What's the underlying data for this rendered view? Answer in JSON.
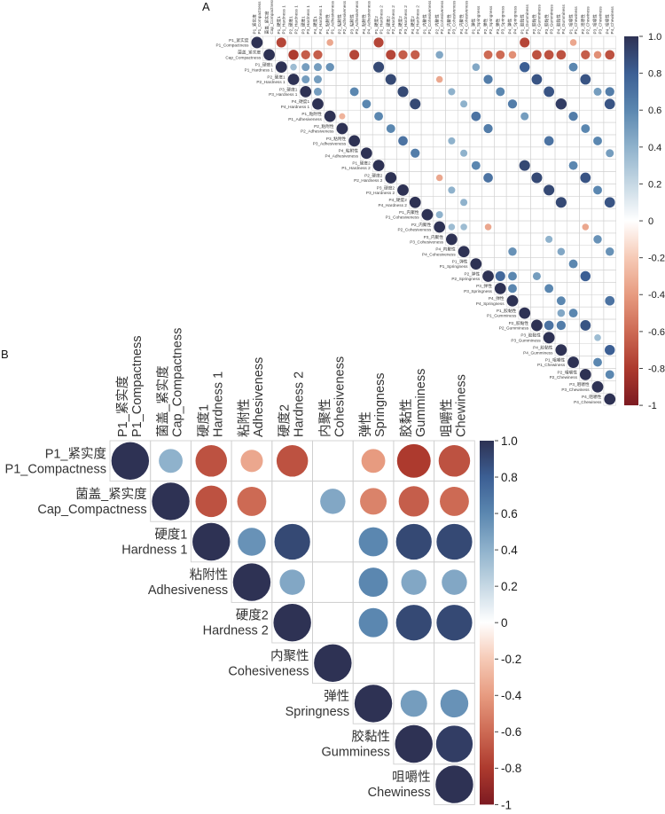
{
  "figure": {
    "background": "#ffffff"
  },
  "palette": {
    "stops": [
      {
        "v": -1,
        "color": "#7c1a21"
      },
      {
        "v": -0.8,
        "color": "#ad3a2e"
      },
      {
        "v": -0.6,
        "color": "#cd6a54"
      },
      {
        "v": -0.4,
        "color": "#e79b80"
      },
      {
        "v": -0.2,
        "color": "#f6cab6"
      },
      {
        "v": 0,
        "color": "#ffffff"
      },
      {
        "v": 0.2,
        "color": "#c6d8e4"
      },
      {
        "v": 0.4,
        "color": "#8fb2cc"
      },
      {
        "v": 0.6,
        "color": "#5b87b0"
      },
      {
        "v": 0.8,
        "color": "#3c5f94"
      },
      {
        "v": 1,
        "color": "#2e3254"
      }
    ],
    "grid_color": "#d0d0d0"
  },
  "chart_data": {
    "type": "heatmap",
    "subtype": "correlation-matrix-upper-circles",
    "domain": [
      -1,
      1
    ],
    "legend_position": "right",
    "panels": [
      {
        "id": "A",
        "panel_label": "A",
        "variables": [
          {
            "zh": "P1_紧实度",
            "en": "P1_Compactness"
          },
          {
            "zh": "菌盖_紧实度",
            "en": "Cap_Compactness"
          },
          {
            "zh": "P1_硬度1",
            "en": "P1_Hardness 1"
          },
          {
            "zh": "P2_硬度1",
            "en": "P2_Hardness 1"
          },
          {
            "zh": "P3_硬度1",
            "en": "P3_Hardness 1"
          },
          {
            "zh": "P4_硬度1",
            "en": "P4_Hardness 1"
          },
          {
            "zh": "P1_粘附性",
            "en": "P1_Adhesiveness"
          },
          {
            "zh": "P2_粘附性",
            "en": "P2_Adhesiveness"
          },
          {
            "zh": "P3_粘附性",
            "en": "P3_Adhesiveness"
          },
          {
            "zh": "P4_粘附性",
            "en": "P4_Adhesiveness"
          },
          {
            "zh": "P1_硬度2",
            "en": "P1_Hardness 2"
          },
          {
            "zh": "P2_硬度2",
            "en": "P2_Hardness 2"
          },
          {
            "zh": "P3_硬度2",
            "en": "P3_Hardness 2"
          },
          {
            "zh": "P4_硬度2",
            "en": "P4_Hardness 2"
          },
          {
            "zh": "P1_内聚性",
            "en": "P1_Cohesiveness"
          },
          {
            "zh": "P2_内聚性",
            "en": "P2_Cohesiveness"
          },
          {
            "zh": "P3_内聚性",
            "en": "P3_Cohesiveness"
          },
          {
            "zh": "P4_内聚性",
            "en": "P4_Cohesiveness"
          },
          {
            "zh": "P1_弹性",
            "en": "P1_Springness"
          },
          {
            "zh": "P2_弹性",
            "en": "P2_Springness"
          },
          {
            "zh": "P3_弹性",
            "en": "P3_Springness"
          },
          {
            "zh": "P4_弹性",
            "en": "P4_Springness"
          },
          {
            "zh": "P1_胶黏性",
            "en": "P1_Gumminess"
          },
          {
            "zh": "P2_胶黏性",
            "en": "P2_Gumminess"
          },
          {
            "zh": "P3_胶黏性",
            "en": "P3_Gumminess"
          },
          {
            "zh": "P4_胶黏性",
            "en": "P4_Gumminess"
          },
          {
            "zh": "P1_咀嚼性",
            "en": "P1_Chewiness"
          },
          {
            "zh": "P2_咀嚼性",
            "en": "P2_Chewiness"
          },
          {
            "zh": "P3_咀嚼性",
            "en": "P3_Chewiness"
          },
          {
            "zh": "P4_咀嚼性",
            "en": "P4_Chewiness"
          }
        ],
        "cells": [
          [
            1,
            1,
            1
          ],
          [
            1,
            3,
            -0.75
          ],
          [
            1,
            7,
            -0.35
          ],
          [
            1,
            11,
            -0.75
          ],
          [
            1,
            23,
            -0.75
          ],
          [
            1,
            27,
            -0.35
          ],
          [
            2,
            2,
            1
          ],
          [
            2,
            4,
            -0.8
          ],
          [
            2,
            5,
            -0.65
          ],
          [
            2,
            6,
            -0.65
          ],
          [
            2,
            9,
            -0.75
          ],
          [
            2,
            12,
            -0.75
          ],
          [
            2,
            13,
            -0.65
          ],
          [
            2,
            14,
            -0.65
          ],
          [
            2,
            16,
            0.45
          ],
          [
            2,
            20,
            -0.6
          ],
          [
            2,
            21,
            -0.6
          ],
          [
            2,
            22,
            -0.45
          ],
          [
            2,
            24,
            -0.7
          ],
          [
            2,
            25,
            -0.7
          ],
          [
            2,
            26,
            -0.7
          ],
          [
            2,
            28,
            -0.65
          ],
          [
            2,
            29,
            -0.45
          ],
          [
            2,
            30,
            -0.7
          ],
          [
            3,
            3,
            1
          ],
          [
            3,
            4,
            0.35
          ],
          [
            3,
            5,
            0.5
          ],
          [
            3,
            6,
            0.5
          ],
          [
            3,
            7,
            0.55
          ],
          [
            3,
            11,
            0.9
          ],
          [
            3,
            19,
            0.45
          ],
          [
            3,
            23,
            0.8
          ],
          [
            3,
            27,
            0.6
          ],
          [
            4,
            4,
            1
          ],
          [
            4,
            5,
            0.5
          ],
          [
            4,
            6,
            0.5
          ],
          [
            4,
            12,
            0.9
          ],
          [
            4,
            16,
            -0.35
          ],
          [
            4,
            20,
            0.65
          ],
          [
            4,
            24,
            0.85
          ],
          [
            4,
            28,
            0.85
          ],
          [
            5,
            5,
            1
          ],
          [
            5,
            6,
            0.5
          ],
          [
            5,
            9,
            0.6
          ],
          [
            5,
            13,
            0.9
          ],
          [
            5,
            17,
            0.4
          ],
          [
            5,
            21,
            0.6
          ],
          [
            5,
            25,
            0.85
          ],
          [
            5,
            29,
            0.5
          ],
          [
            5,
            30,
            0.65
          ],
          [
            6,
            6,
            1
          ],
          [
            6,
            10,
            0.6
          ],
          [
            6,
            14,
            0.9
          ],
          [
            6,
            18,
            0.4
          ],
          [
            6,
            22,
            0.65
          ],
          [
            6,
            26,
            0.95
          ],
          [
            6,
            30,
            0.85
          ],
          [
            7,
            7,
            1
          ],
          [
            7,
            8,
            -0.3
          ],
          [
            7,
            11,
            0.6
          ],
          [
            7,
            19,
            0.7
          ],
          [
            7,
            23,
            0.5
          ],
          [
            7,
            27,
            0.65
          ],
          [
            8,
            8,
            1
          ],
          [
            8,
            12,
            0.6
          ],
          [
            8,
            20,
            0.65
          ],
          [
            8,
            28,
            0.6
          ],
          [
            9,
            9,
            1
          ],
          [
            9,
            13,
            0.7
          ],
          [
            9,
            17,
            0.4
          ],
          [
            9,
            25,
            0.7
          ],
          [
            9,
            29,
            0.6
          ],
          [
            10,
            10,
            1
          ],
          [
            10,
            14,
            0.65
          ],
          [
            10,
            18,
            0.4
          ],
          [
            10,
            30,
            0.5
          ],
          [
            11,
            11,
            1
          ],
          [
            11,
            19,
            0.6
          ],
          [
            11,
            23,
            0.9
          ],
          [
            11,
            27,
            0.6
          ],
          [
            12,
            12,
            1
          ],
          [
            12,
            16,
            -0.35
          ],
          [
            12,
            20,
            0.7
          ],
          [
            12,
            24,
            0.9
          ],
          [
            12,
            28,
            0.85
          ],
          [
            13,
            13,
            1
          ],
          [
            13,
            17,
            0.4
          ],
          [
            13,
            25,
            0.9
          ],
          [
            13,
            29,
            0.6
          ],
          [
            14,
            14,
            1
          ],
          [
            14,
            18,
            0.4
          ],
          [
            14,
            26,
            0.9
          ],
          [
            14,
            30,
            0.85
          ],
          [
            15,
            15,
            1
          ],
          [
            15,
            16,
            0.4
          ],
          [
            16,
            16,
            1
          ],
          [
            16,
            17,
            0.35
          ],
          [
            16,
            18,
            0.35
          ],
          [
            16,
            20,
            -0.35
          ],
          [
            16,
            28,
            -0.35
          ],
          [
            17,
            17,
            1
          ],
          [
            17,
            25,
            0.4
          ],
          [
            17,
            29,
            0.55
          ],
          [
            18,
            18,
            1
          ],
          [
            18,
            22,
            0.55
          ],
          [
            18,
            26,
            0.45
          ],
          [
            18,
            30,
            0.55
          ],
          [
            19,
            19,
            1
          ],
          [
            19,
            27,
            0.6
          ],
          [
            20,
            20,
            1
          ],
          [
            20,
            21,
            0.75
          ],
          [
            20,
            22,
            0.6
          ],
          [
            20,
            24,
            0.5
          ],
          [
            20,
            28,
            0.8
          ],
          [
            21,
            21,
            1
          ],
          [
            21,
            22,
            0.6
          ],
          [
            21,
            25,
            0.6
          ],
          [
            22,
            22,
            1
          ],
          [
            22,
            26,
            0.6
          ],
          [
            22,
            30,
            0.7
          ],
          [
            23,
            23,
            1
          ],
          [
            23,
            26,
            0.45
          ],
          [
            23,
            27,
            0.6
          ],
          [
            24,
            24,
            1
          ],
          [
            24,
            25,
            0.7
          ],
          [
            24,
            26,
            0.65
          ],
          [
            24,
            28,
            0.85
          ],
          [
            25,
            25,
            1
          ],
          [
            25,
            29,
            0.35
          ],
          [
            26,
            26,
            1
          ],
          [
            26,
            30,
            0.8
          ],
          [
            27,
            27,
            1
          ],
          [
            27,
            29,
            0.6
          ],
          [
            28,
            28,
            1
          ],
          [
            28,
            30,
            0.6
          ],
          [
            29,
            29,
            1
          ],
          [
            30,
            30,
            1
          ]
        ],
        "colorbar": {
          "tick_labels": [
            "1.0",
            "0.8",
            "0.6",
            "0.4",
            "0.2",
            "0",
            "-0.2",
            "-0.4",
            "-0.6",
            "-0.8",
            "-1"
          ],
          "tick_values": [
            1,
            0.8,
            0.6,
            0.4,
            0.2,
            0,
            -0.2,
            -0.4,
            -0.6,
            -0.8,
            -1
          ]
        }
      },
      {
        "id": "B",
        "panel_label": "B",
        "variables": [
          {
            "zh": "P1_紧实度",
            "en": "P1_Compactness"
          },
          {
            "zh": "菌盖_紧实度",
            "en": "Cap_Compactness"
          },
          {
            "zh": "硬度1",
            "en": "Hardness 1"
          },
          {
            "zh": "粘附性",
            "en": "Adhesiveness"
          },
          {
            "zh": "硬度2",
            "en": "Hardness 2"
          },
          {
            "zh": "内聚性",
            "en": "Cohesiveness"
          },
          {
            "zh": "弹性",
            "en": "Springness"
          },
          {
            "zh": "胶黏性",
            "en": "Gumminess"
          },
          {
            "zh": "咀嚼性",
            "en": "Chewiness"
          }
        ],
        "cells": [
          [
            1,
            1,
            1
          ],
          [
            1,
            2,
            0.4
          ],
          [
            1,
            3,
            -0.7
          ],
          [
            1,
            4,
            -0.35
          ],
          [
            1,
            5,
            -0.7
          ],
          [
            1,
            7,
            -0.4
          ],
          [
            1,
            8,
            -0.8
          ],
          [
            1,
            9,
            -0.7
          ],
          [
            2,
            2,
            1
          ],
          [
            2,
            3,
            -0.7
          ],
          [
            2,
            4,
            -0.6
          ],
          [
            2,
            6,
            0.45
          ],
          [
            2,
            7,
            -0.5
          ],
          [
            2,
            8,
            -0.65
          ],
          [
            2,
            9,
            -0.6
          ],
          [
            3,
            3,
            1
          ],
          [
            3,
            4,
            0.55
          ],
          [
            3,
            5,
            0.9
          ],
          [
            3,
            7,
            0.6
          ],
          [
            3,
            8,
            0.9
          ],
          [
            3,
            9,
            0.9
          ],
          [
            4,
            4,
            1
          ],
          [
            4,
            5,
            0.45
          ],
          [
            4,
            7,
            0.6
          ],
          [
            4,
            8,
            0.45
          ],
          [
            4,
            9,
            0.45
          ],
          [
            5,
            5,
            1
          ],
          [
            5,
            7,
            0.6
          ],
          [
            5,
            8,
            0.9
          ],
          [
            5,
            9,
            0.9
          ],
          [
            6,
            6,
            1
          ],
          [
            7,
            7,
            1
          ],
          [
            7,
            8,
            0.5
          ],
          [
            7,
            9,
            0.55
          ],
          [
            8,
            8,
            1
          ],
          [
            8,
            9,
            0.95
          ],
          [
            9,
            9,
            1
          ]
        ],
        "colorbar": {
          "tick_labels": [
            "1.0",
            "0.8",
            "0.6",
            "0.4",
            "0.2",
            "0",
            "-0.2",
            "-0.4",
            "-0.6",
            "-0.8",
            "-1"
          ],
          "tick_values": [
            1,
            0.8,
            0.6,
            0.4,
            0.2,
            0,
            -0.2,
            -0.4,
            -0.6,
            -0.8,
            -1
          ]
        }
      }
    ]
  }
}
